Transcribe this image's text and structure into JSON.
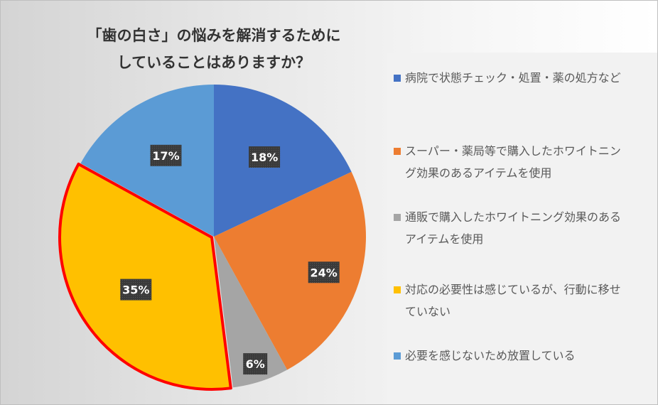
{
  "chart_data": {
    "type": "pie",
    "title_lines": [
      "「歯の白さ」の悩みを解消するために",
      "していることはありますか？"
    ],
    "categories": [
      "病院で状態チェック・処置・薬の処方など",
      "スーパー・薬局等で購入したホワイトニング効果のあるアイテムを使用",
      "通販で購入したホワイトニング効果のあるアイテムを使用",
      "対応の必要性は感じているが、行動に移せていない",
      "必要を感じないため放置している"
    ],
    "legend_lines": [
      [
        "病院で状態チェック・処置・薬の処方など"
      ],
      [
        "スーパー・薬局等で購入したホワイトニン",
        "グ効果のあるアイテムを使用"
      ],
      [
        "通販で購入したホワイトニング効果のある",
        "アイテムを使用"
      ],
      [
        "対応の必要性は感じているが、行動に移せ",
        "ていない"
      ],
      [
        "必要を感じないため放置している"
      ]
    ],
    "values": [
      18,
      24,
      6,
      35,
      17
    ],
    "labels": [
      "18%",
      "24%",
      "6%",
      "35%",
      "17%"
    ],
    "colors": [
      "#4472c4",
      "#ed7d31",
      "#a5a5a5",
      "#ffc000",
      "#5b9bd5"
    ],
    "highlight_index": 3,
    "highlight_color": "#ff0000",
    "label_background": "#404040",
    "legend_position": "right"
  }
}
